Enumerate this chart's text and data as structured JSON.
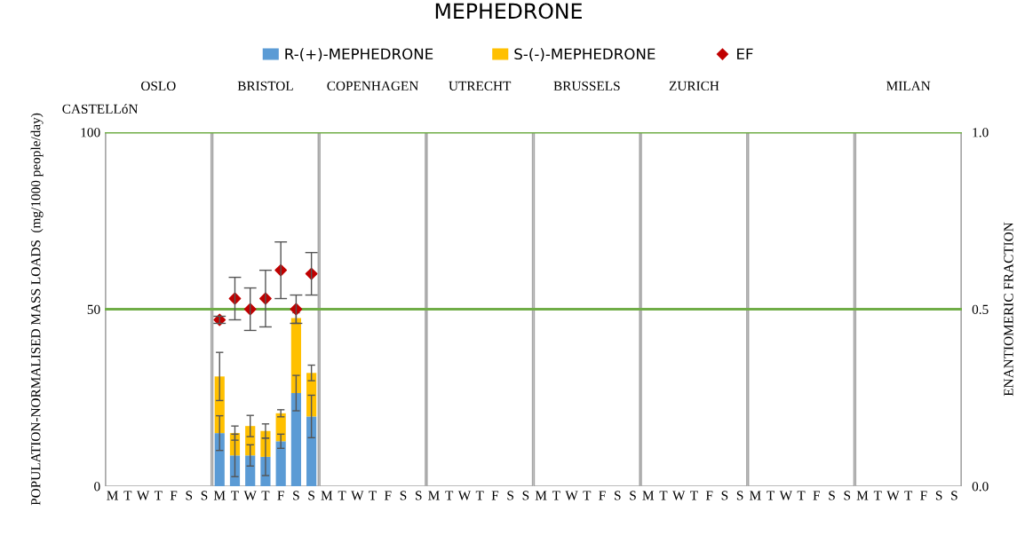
{
  "chart_data": {
    "type": "bar",
    "title": "MEPHEDRONE",
    "annotations": [
      "CASTELLóN",
      "OSLO",
      "BRISTOL",
      "COPENHAGEN",
      "UTRECHT",
      "BRUSSELS",
      "ZURICH",
      "MILAN"
    ],
    "ylabel": "POPULATION-NORMALISED MASS LOADS  (mg/1000 people/day)",
    "y2label": "ENANTIOMERIC FRACTION",
    "categories": [
      "M",
      "T",
      "W",
      "T",
      "F",
      "S",
      "S",
      "M",
      "T",
      "W",
      "T",
      "F",
      "S",
      "S",
      "M",
      "T",
      "W",
      "T",
      "F",
      "S",
      "S",
      "M",
      "T",
      "W",
      "T",
      "F",
      "S",
      "S",
      "M",
      "T",
      "W",
      "T",
      "F",
      "S",
      "S",
      "M",
      "T",
      "W",
      "T",
      "F",
      "S",
      "S",
      "M",
      "T",
      "W",
      "T",
      "F",
      "S",
      "S",
      "M",
      "T",
      "W",
      "T",
      "F",
      "S",
      "S"
    ],
    "stacked": true,
    "legend": "top",
    "ylim": [
      0,
      100
    ],
    "yticks": [
      0,
      50,
      100
    ],
    "y2lim": [
      0,
      1.0
    ],
    "y2ticks": [
      {
        "value": 0,
        "label": "0.0"
      },
      0.5,
      {
        "value": 1,
        "label": "1.0"
      }
    ],
    "series": [
      {
        "name": "R-(+)-MEPHEDRONE",
        "color": "#5b9bd5",
        "values": [
          null,
          null,
          null,
          null,
          null,
          null,
          null,
          15.0,
          8.7,
          8.7,
          8.3,
          12.7,
          26.3,
          19.7,
          null,
          null,
          null,
          null,
          null,
          null,
          null,
          null,
          null,
          null,
          null,
          null,
          null,
          null,
          null,
          null,
          null,
          null,
          null,
          null,
          null,
          null,
          null,
          null,
          null,
          null,
          null,
          null,
          null,
          null,
          null,
          null,
          null,
          null,
          null,
          null,
          null,
          null,
          null,
          null,
          null,
          null
        ],
        "errors": [
          null,
          null,
          null,
          null,
          null,
          null,
          null,
          4.9,
          6,
          3,
          5.3,
          2,
          5,
          6,
          null,
          null,
          null,
          null,
          null,
          null,
          null,
          null,
          null,
          null,
          null,
          null,
          null,
          null,
          null,
          null,
          null,
          null,
          null,
          null,
          null,
          null,
          null,
          null,
          null,
          null,
          null,
          null,
          null,
          null,
          null,
          null,
          null,
          null,
          null,
          null,
          null,
          null,
          null,
          null,
          null,
          null
        ]
      },
      {
        "name": "S-(-)-MEPHEDRONE",
        "color": "#ffc000",
        "values": [
          null,
          null,
          null,
          null,
          null,
          null,
          null,
          16.0,
          6.3,
          8.3,
          7.3,
          7.9,
          21.2,
          12.3,
          null,
          null,
          null,
          null,
          null,
          null,
          null,
          null,
          null,
          null,
          null,
          null,
          null,
          null,
          null,
          null,
          null,
          null,
          null,
          null,
          null,
          null,
          null,
          null,
          null,
          null,
          null,
          null,
          null,
          null,
          null,
          null,
          null,
          null,
          null,
          null,
          null,
          null,
          null,
          null,
          null,
          null
        ],
        "errors": [
          null,
          null,
          null,
          null,
          null,
          null,
          null,
          6.8,
          2,
          3,
          2,
          1,
          1.5,
          2.2,
          null,
          null,
          null,
          null,
          null,
          null,
          null,
          null,
          null,
          null,
          null,
          null,
          null,
          null,
          null,
          null,
          null,
          null,
          null,
          null,
          null,
          null,
          null,
          null,
          null,
          null,
          null,
          null,
          null,
          null,
          null,
          null,
          null,
          null,
          null,
          null,
          null,
          null,
          null,
          null,
          null,
          null
        ]
      },
      {
        "name": "EF",
        "type": "scatter",
        "axis": "y2",
        "marker": "diamond",
        "color": "#c00000",
        "values": [
          null,
          null,
          null,
          null,
          null,
          null,
          null,
          0.47,
          0.53,
          0.5,
          0.53,
          0.61,
          0.5,
          0.6,
          null,
          null,
          null,
          null,
          null,
          null,
          null,
          null,
          null,
          null,
          null,
          null,
          null,
          null,
          null,
          null,
          null,
          null,
          null,
          null,
          null,
          null,
          null,
          null,
          null,
          null,
          null,
          null,
          null,
          null,
          null,
          null,
          null,
          null,
          null,
          null,
          null,
          null,
          null,
          null,
          null,
          null
        ],
        "errors": [
          null,
          null,
          null,
          null,
          null,
          null,
          null,
          0.01,
          0.06,
          0.06,
          0.08,
          0.08,
          0.04,
          0.06,
          null,
          null,
          null,
          null,
          null,
          null,
          null,
          null,
          null,
          null,
          null,
          null,
          null,
          null,
          null,
          null,
          null,
          null,
          null,
          null,
          null,
          null,
          null,
          null,
          null,
          null,
          null,
          null,
          null,
          null,
          null,
          null,
          null,
          null,
          null,
          null,
          null,
          null,
          null,
          null,
          null,
          null
        ]
      }
    ],
    "ref_lines": [
      {
        "axis": "y2",
        "value": 0.5,
        "color": "#70ad47"
      },
      {
        "axis": "y2",
        "value": 1.0,
        "color": "#70ad47"
      }
    ]
  }
}
